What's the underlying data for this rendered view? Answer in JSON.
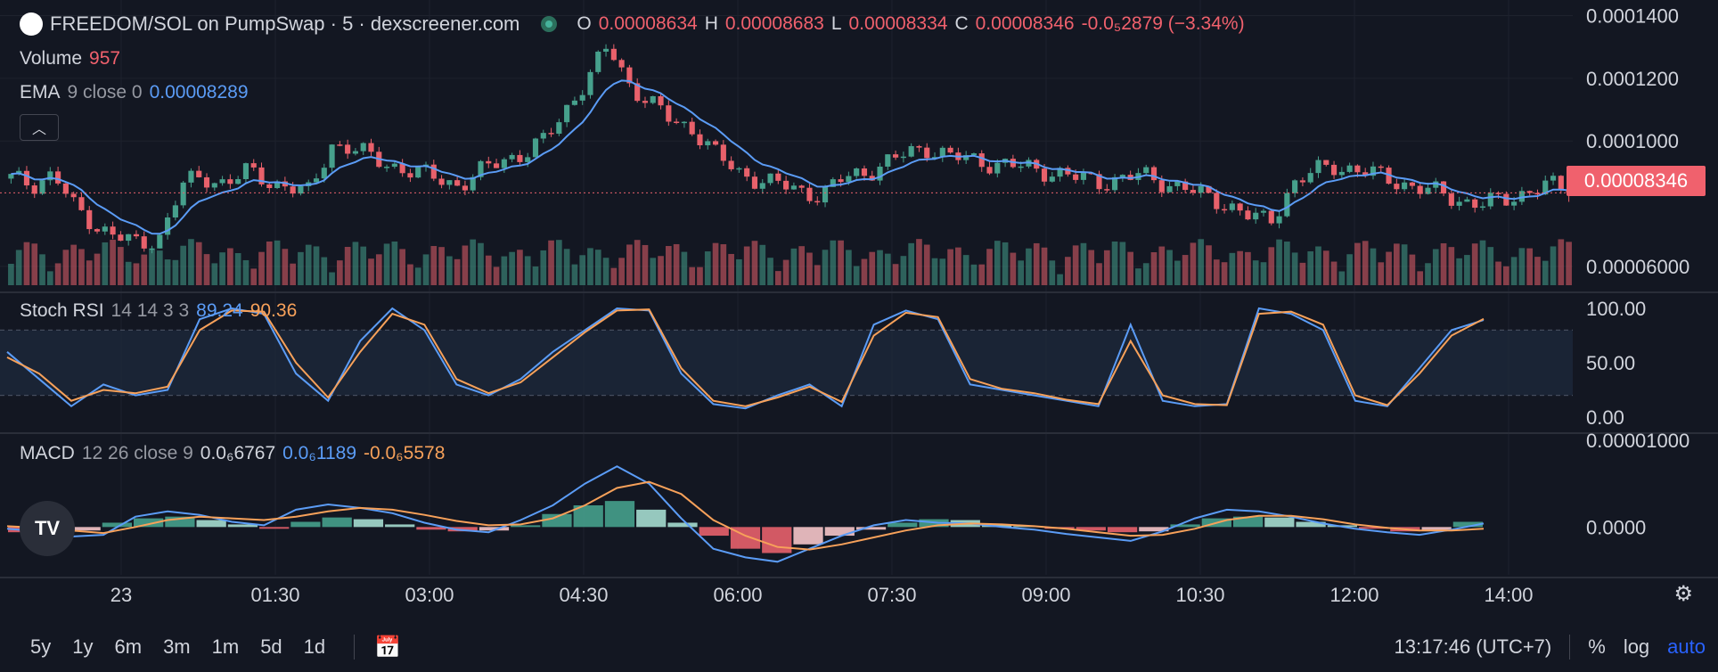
{
  "header": {
    "title": "FREEDOM/SOL on PumpSwap · 5 · dexscreener.com",
    "ohlc": {
      "o_label": "O",
      "o": "0.00008634",
      "h_label": "H",
      "h": "0.00008683",
      "l_label": "L",
      "l": "0.00008334",
      "c_label": "C",
      "c": "0.00008346",
      "change": "-0.0₅2879 (−3.34%)"
    },
    "volume_label": "Volume",
    "volume_value": "957",
    "ema_label": "EMA",
    "ema_params": "9 close 0",
    "ema_value": "0.00008289"
  },
  "stoch": {
    "label": "Stoch RSI",
    "params": "14 14 3 3",
    "k": "89.24",
    "d": "90.36"
  },
  "macd": {
    "label": "MACD",
    "params": "12 26 close 9",
    "v1": "0.0₆6767",
    "v2": "0.0₆1189",
    "v3": "-0.0₆5578"
  },
  "price_label": "0.00008346",
  "price_axis": [
    "0.0001400",
    "0.0001200",
    "0.0001000",
    "0.00006000"
  ],
  "stoch_axis": [
    "100.00",
    "50.00",
    "0.00"
  ],
  "macd_axis": [
    "0.00001000",
    "0.0000"
  ],
  "time_axis": [
    "23",
    "01:30",
    "03:00",
    "04:30",
    "06:00",
    "07:30",
    "09:00",
    "10:30",
    "12:00",
    "14:00"
  ],
  "timeframes": [
    "5y",
    "1y",
    "6m",
    "3m",
    "1m",
    "5d",
    "1d"
  ],
  "footer": {
    "clock": "13:17:46 (UTC+7)",
    "percent": "%",
    "log": "log",
    "auto": "auto"
  },
  "colors": {
    "bg": "#131722",
    "up": "#46a08c",
    "down": "#e8616b",
    "ema": "#5b9cf6",
    "stoch_d": "#f7a15a",
    "price_tag": "#f0616d"
  },
  "chart_data": [
    {
      "type": "candlestick",
      "title": "FREEDOM/SOL on PumpSwap · 5 · dexscreener.com",
      "x": [
        "23",
        "01:30",
        "03:00",
        "04:30",
        "06:00",
        "07:30",
        "09:00",
        "10:30",
        "12:00"
      ],
      "price_path": [
        8.8e-05,
        8.6e-05,
        9e-05,
        7.8e-05,
        7.3e-05,
        7e-05,
        6.6e-05,
        7e-05,
        8.6e-05,
        8.8e-05,
        8.7e-05,
        9e-05,
        8.7e-05,
        8.6e-05,
        8.3e-05,
        9.9e-05,
        9.8e-05,
        9.4e-05,
        9.2e-05,
        9e-05,
        8.8e-05,
        8.6e-05,
        9e-05,
        9.4e-05,
        9.6e-05,
        0.0001,
        0.00011,
        0.00012,
        0.00013,
        0.000118,
        0.000112,
        0.000106,
        0.000104,
        9.6e-05,
        9e-05,
        8.8e-05,
        8.6e-05,
        8.4e-05,
        8.3e-05,
        8.8e-05,
        9e-05,
        9.3e-05,
        9.6e-05,
        9.8e-05,
        9.5e-05,
        9.4e-05,
        9.3e-05,
        9.2e-05,
        9.1e-05,
        9e-05,
        8.8e-05,
        8.7e-05,
        8.8e-05,
        8.9e-05,
        8.7e-05,
        8.5e-05,
        8.2e-05,
        8e-05,
        7.6e-05,
        7.4e-05,
        8.6e-05,
        9e-05,
        9.2e-05,
        9.1e-05,
        8.9e-05,
        8.7e-05,
        8.5e-05,
        8.3e-05,
        8.1e-05,
        8e-05,
        8.1e-05,
        8.4e-05,
        8.6e-05,
        8.35e-05
      ],
      "ema_value": 8.289e-05,
      "last_price": 8.346e-05,
      "ylim": [
        5.4e-05,
        0.000141
      ]
    },
    {
      "type": "line",
      "title": "Stoch RSI",
      "series": [
        {
          "name": "K",
          "values": [
            60,
            35,
            10,
            30,
            20,
            25,
            90,
            100,
            95,
            40,
            15,
            70,
            100,
            80,
            30,
            20,
            35,
            60,
            80,
            100,
            98,
            40,
            12,
            8,
            20,
            30,
            10,
            85,
            98,
            90,
            30,
            25,
            20,
            15,
            10,
            85,
            15,
            10,
            12,
            100,
            95,
            80,
            15,
            10,
            45,
            80,
            89.24
          ]
        },
        {
          "name": "D",
          "values": [
            55,
            40,
            15,
            25,
            22,
            28,
            80,
            98,
            97,
            50,
            18,
            60,
            95,
            85,
            35,
            22,
            32,
            55,
            78,
            98,
            99,
            45,
            15,
            10,
            18,
            28,
            14,
            75,
            96,
            92,
            35,
            26,
            22,
            16,
            12,
            70,
            20,
            12,
            11,
            95,
            97,
            85,
            20,
            11,
            40,
            75,
            90.36
          ]
        }
      ],
      "ylim": [
        0,
        100
      ]
    },
    {
      "type": "bar",
      "title": "MACD",
      "histogram": [
        -0.6,
        -0.8,
        -0.4,
        0.5,
        1.0,
        1.2,
        0.8,
        0.3,
        -0.2,
        0.6,
        1.1,
        0.9,
        0.3,
        -0.3,
        -0.5,
        -0.4,
        0.2,
        1.5,
        2.5,
        3.0,
        2.0,
        0.5,
        -1.0,
        -2.5,
        -3.0,
        -2.0,
        -1.0,
        -0.3,
        0.5,
        0.9,
        0.8,
        0.3,
        0.1,
        -0.2,
        -0.4,
        -0.6,
        -0.5,
        0.3,
        1.0,
        1.2,
        1.1,
        0.6,
        0.2,
        -0.2,
        -0.5,
        -0.4,
        0.6
      ],
      "macd_line": [
        -0.2,
        -0.5,
        -1.1,
        -0.9,
        1.2,
        1.8,
        1.4,
        0.6,
        0.2,
        2.0,
        2.6,
        2.2,
        1.6,
        0.5,
        -0.3,
        -0.6,
        0.8,
        2.5,
        5.0,
        7.0,
        5.0,
        1.0,
        -2.5,
        -3.5,
        -4.0,
        -2.5,
        -1.0,
        0.2,
        0.8,
        0.5,
        0.4,
        0.0,
        -0.3,
        -0.8,
        -1.2,
        -1.6,
        -0.5,
        1.0,
        2.0,
        1.8,
        1.2,
        0.4,
        -0.2,
        -0.6,
        -0.9,
        -0.3,
        0.4
      ],
      "signal_line": [
        0.1,
        -0.1,
        -0.4,
        -0.7,
        0.0,
        0.8,
        1.2,
        1.0,
        0.8,
        1.2,
        1.8,
        2.2,
        2.0,
        1.4,
        0.7,
        0.2,
        0.3,
        1.0,
        2.5,
        4.5,
        5.2,
        3.8,
        0.8,
        -1.0,
        -2.3,
        -2.6,
        -2.0,
        -1.2,
        -0.4,
        0.2,
        0.4,
        0.3,
        0.1,
        -0.2,
        -0.6,
        -1.0,
        -0.9,
        -0.2,
        0.8,
        1.3,
        1.3,
        0.9,
        0.3,
        -0.1,
        -0.4,
        -0.4,
        -0.2
      ],
      "ylim": [
        -5,
        10
      ]
    }
  ]
}
